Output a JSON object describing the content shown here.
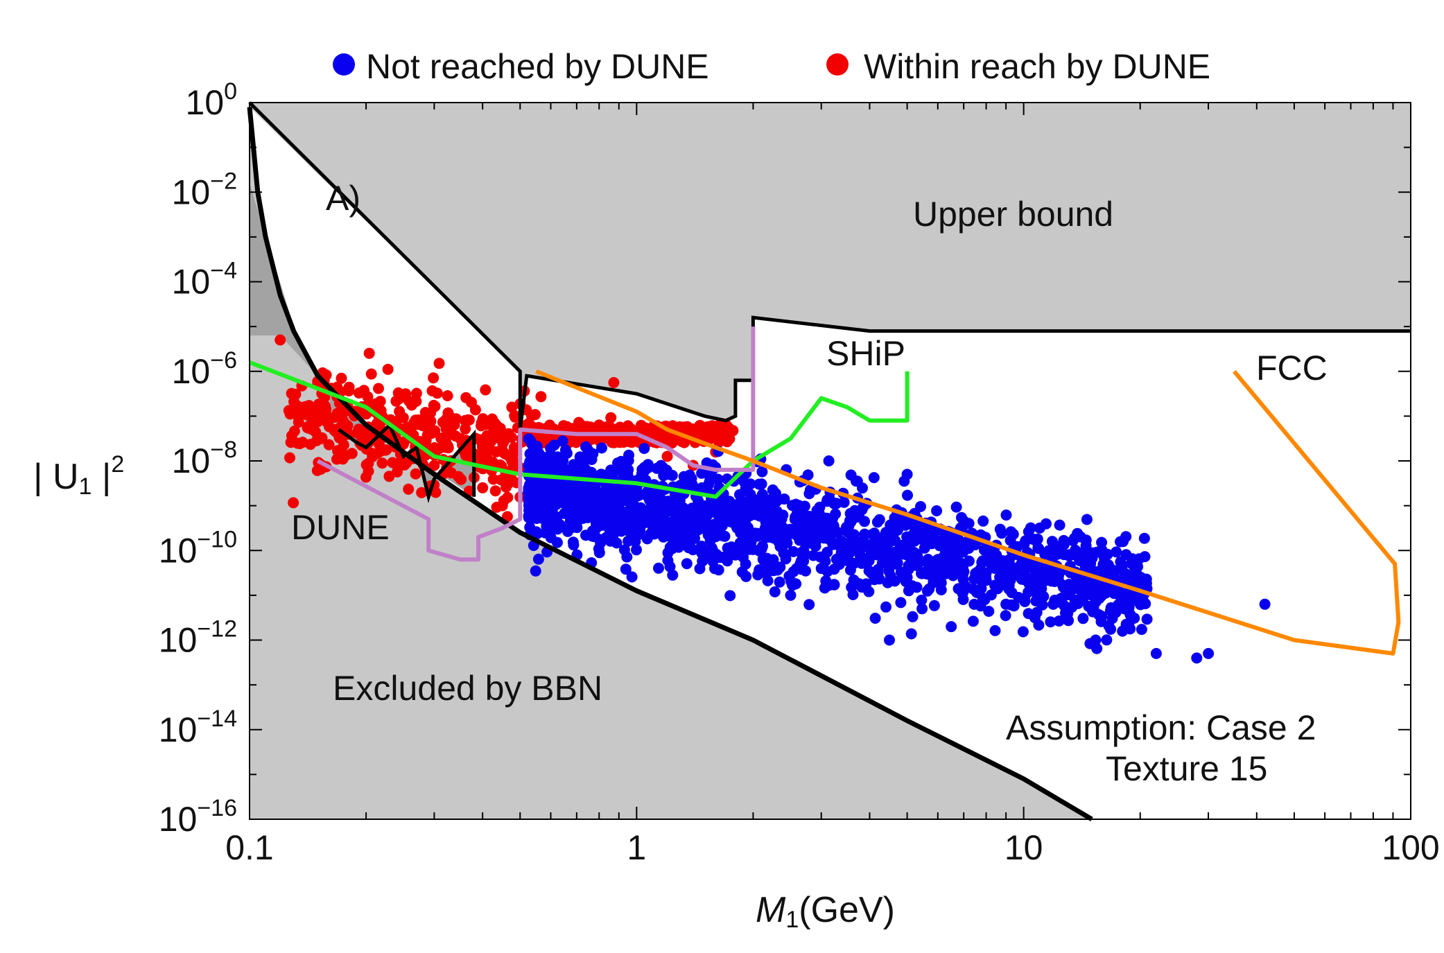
{
  "chart_data": {
    "type": "scatter",
    "panel_label": "A)",
    "x_scale": "log",
    "y_scale": "log",
    "xlim": [
      0.1,
      100
    ],
    "ylim_log10": [
      -16,
      0
    ],
    "xlabel": {
      "var": "M",
      "sub": "1",
      "unit": "(GeV)"
    },
    "ylabel": {
      "prefix": "| U",
      "sub": "1",
      "suffix": " |",
      "sup": "2"
    },
    "x_ticks": [
      {
        "value": 0.1,
        "label": "0.1"
      },
      {
        "value": 1,
        "label": "1"
      },
      {
        "value": 10,
        "label": "10"
      },
      {
        "value": 100,
        "label": "100"
      }
    ],
    "y_ticks": [
      {
        "value": 0,
        "base": "10",
        "exp": "0"
      },
      {
        "value": -2,
        "base": "10",
        "exp": "−2"
      },
      {
        "value": -4,
        "base": "10",
        "exp": "−4"
      },
      {
        "value": -6,
        "base": "10",
        "exp": "−6"
      },
      {
        "value": -8,
        "base": "10",
        "exp": "−8"
      },
      {
        "value": -10,
        "base": "10",
        "exp": "−10"
      },
      {
        "value": -12,
        "base": "10",
        "exp": "−12"
      },
      {
        "value": -14,
        "base": "10",
        "exp": "−14"
      },
      {
        "value": -16,
        "base": "10",
        "exp": "−16"
      }
    ],
    "legend": [
      {
        "label": "Not reached by DUNE",
        "color": "#0a00f0"
      },
      {
        "label": "Within reach by DUNE",
        "color": "#f20000"
      }
    ],
    "legend_position": "top",
    "annotations": {
      "upper_bound": "Upper bound",
      "bbn": "Excluded by BBN",
      "assumption_line1": "Assumption: Case 2",
      "assumption_line2": "Texture 15"
    },
    "region_colors": {
      "excluded": "#c8c8c8",
      "excluded_dark": "#a3a3a3"
    },
    "upper_bound": [
      [
        0.1,
        0
      ],
      [
        0.5,
        -6
      ],
      [
        0.5,
        -7.3
      ],
      [
        0.52,
        -6.1
      ],
      [
        1.0,
        -6.5
      ],
      [
        1.5,
        -7.0
      ],
      [
        1.7,
        -7.1
      ],
      [
        1.8,
        -7.0
      ],
      [
        1.8,
        -6.2
      ],
      [
        2.0,
        -6.2
      ],
      [
        2.0,
        -4.8
      ],
      [
        4.0,
        -5.1
      ],
      [
        100,
        -5.1
      ],
      [
        100,
        0
      ]
    ],
    "bbn_lower_bound": [
      [
        0.1,
        -0.1
      ],
      [
        0.105,
        -2.0
      ],
      [
        0.11,
        -3.0
      ],
      [
        0.12,
        -4.3
      ],
      [
        0.13,
        -5.1
      ],
      [
        0.15,
        -6.1
      ],
      [
        0.2,
        -7.2
      ],
      [
        0.3,
        -8.3
      ],
      [
        0.5,
        -9.6
      ],
      [
        1.0,
        -10.9
      ],
      [
        2.0,
        -12.0
      ],
      [
        5.0,
        -13.8
      ],
      [
        10.0,
        -15.1
      ],
      [
        15.0,
        -16
      ]
    ],
    "dark_excluded_region": [
      [
        0.1,
        -1.8
      ],
      [
        0.13,
        -5.0
      ],
      [
        0.15,
        -6.0
      ],
      [
        0.16,
        -6.6
      ],
      [
        0.17,
        -7.3
      ],
      [
        0.19,
        -7.6
      ],
      [
        0.2,
        -7.7
      ],
      [
        0.23,
        -7.2
      ],
      [
        0.25,
        -7.9
      ],
      [
        0.27,
        -7.7
      ],
      [
        0.29,
        -8.8
      ],
      [
        0.3,
        -8.4
      ],
      [
        0.38,
        -7.4
      ],
      [
        0.38,
        -8.8
      ],
      [
        0.2,
        -7.2
      ],
      [
        0.15,
        -6.1
      ],
      [
        0.12,
        -5.2
      ],
      [
        0.1,
        -5.2
      ]
    ],
    "series": [
      {
        "name": "SHiP",
        "type": "line",
        "color": "#22ee22",
        "points": [
          [
            0.1,
            -5.8
          ],
          [
            0.2,
            -6.8
          ],
          [
            0.3,
            -7.9
          ],
          [
            0.5,
            -8.3
          ],
          [
            1.0,
            -8.5
          ],
          [
            1.6,
            -8.8
          ],
          [
            2.0,
            -8.0
          ],
          [
            2.5,
            -7.5
          ],
          [
            3.0,
            -6.6
          ],
          [
            3.5,
            -6.8
          ],
          [
            4.0,
            -7.1
          ],
          [
            5.0,
            -7.1
          ],
          [
            5.0,
            -6.0
          ]
        ],
        "label": "SHiP"
      },
      {
        "name": "DUNE",
        "type": "line",
        "color": "#c080c8",
        "points": [
          [
            0.15,
            -8.0
          ],
          [
            0.29,
            -9.3
          ],
          [
            0.29,
            -10.0
          ],
          [
            0.35,
            -10.2
          ],
          [
            0.39,
            -10.2
          ],
          [
            0.39,
            -9.7
          ],
          [
            0.45,
            -9.5
          ],
          [
            0.5,
            -9.3
          ],
          [
            0.5,
            -7.3
          ],
          [
            0.7,
            -7.4
          ],
          [
            1.0,
            -7.4
          ],
          [
            1.2,
            -7.7
          ],
          [
            1.4,
            -8.1
          ],
          [
            1.6,
            -8.2
          ],
          [
            2.0,
            -8.2
          ],
          [
            2.0,
            -5.0
          ]
        ],
        "label": "DUNE"
      },
      {
        "name": "FCC",
        "type": "line",
        "color": "#ff8800",
        "points": [
          [
            0.55,
            -6.0
          ],
          [
            1.0,
            -6.9
          ],
          [
            1.2,
            -7.3
          ],
          [
            1.6,
            -7.7
          ],
          [
            2.0,
            -8.0
          ],
          [
            3.0,
            -8.6
          ],
          [
            5.0,
            -9.2
          ],
          [
            10.0,
            -10.1
          ],
          [
            20.0,
            -10.9
          ],
          [
            50.0,
            -12.0
          ],
          [
            90.0,
            -12.3
          ],
          [
            93.0,
            -11.6
          ],
          [
            91.0,
            -10.3
          ],
          [
            35.0,
            -6.0
          ]
        ],
        "label": "FCC"
      },
      {
        "name": "Not reached by DUNE",
        "type": "scatter",
        "color": "#0a00f0",
        "points": [
          [
            0.55,
            -8.6
          ],
          [
            0.7,
            -9.4
          ],
          [
            0.9,
            -8.8
          ],
          [
            1.1,
            -9.1
          ],
          [
            1.3,
            -9.8
          ],
          [
            1.8,
            -10.1
          ],
          [
            2.2,
            -9.7
          ],
          [
            3.0,
            -10.4
          ],
          [
            4.0,
            -9.9
          ],
          [
            5.0,
            -10.6
          ],
          [
            6.0,
            -10.2
          ],
          [
            7.0,
            -10.9
          ],
          [
            8.0,
            -10.5
          ],
          [
            9.0,
            -11.2
          ],
          [
            11.0,
            -10.8
          ],
          [
            13.0,
            -11.4
          ],
          [
            15.0,
            -11.0
          ],
          [
            18.0,
            -11.8
          ],
          [
            22.0,
            -12.3
          ],
          [
            28.0,
            -12.4
          ],
          [
            30.0,
            -12.3
          ],
          [
            42.0,
            -11.2
          ],
          [
            5.0,
            -8.3
          ],
          [
            11.0,
            -9.5
          ],
          [
            2.5,
            -11.0
          ],
          [
            6.5,
            -11.7
          ],
          [
            4.5,
            -12.0
          ]
        ],
        "cloud_count": 1600
      },
      {
        "name": "Within reach by DUNE",
        "type": "scatter",
        "color": "#f20000",
        "points": [
          [
            0.12,
            -5.3
          ],
          [
            0.15,
            -6.3
          ],
          [
            0.18,
            -6.4
          ],
          [
            0.22,
            -7.0
          ],
          [
            0.25,
            -7.6
          ],
          [
            0.3,
            -8.1
          ],
          [
            0.35,
            -7.5
          ],
          [
            0.4,
            -8.6
          ],
          [
            0.45,
            -9.0
          ],
          [
            0.48,
            -8.1
          ],
          [
            0.6,
            -7.6
          ],
          [
            0.8,
            -7.2
          ],
          [
            1.0,
            -7.5
          ],
          [
            1.2,
            -7.9
          ],
          [
            1.4,
            -8.1
          ],
          [
            1.6,
            -7.8
          ]
        ],
        "cloud_count": 700
      }
    ]
  }
}
